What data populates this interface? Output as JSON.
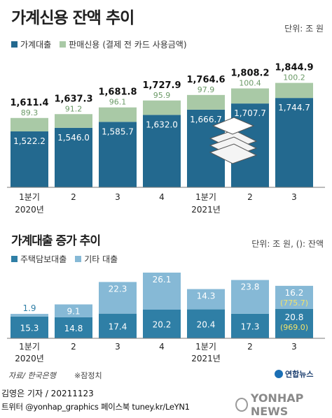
{
  "chart_data": [
    {
      "type": "bar",
      "stacked": true,
      "title": "가계신용 잔액 추이",
      "unit": "단위: 조 원",
      "categories": [
        [
          "1분기",
          "2020년"
        ],
        [
          "2",
          ""
        ],
        [
          "3",
          ""
        ],
        [
          "4",
          ""
        ],
        [
          "1분기",
          "2021년"
        ],
        [
          "2",
          ""
        ],
        [
          "3",
          ""
        ]
      ],
      "series": [
        {
          "name": "가계대출",
          "color": "#23698f",
          "values": [
            1522.2,
            1546.0,
            1585.7,
            1632.0,
            1666.7,
            1707.7,
            1744.7
          ]
        },
        {
          "name": "판매신용",
          "color": "#a9c9a6",
          "values": [
            89.3,
            91.2,
            96.1,
            95.9,
            97.9,
            100.4,
            100.2
          ]
        }
      ],
      "series_legend_suffix": "(결제 전 카드 사용금액)",
      "value_labels": {
        "가계대출": [
          "1,522.2",
          "1,546.0",
          "1,585.7",
          "1,632.0",
          "1,666.7",
          "1,707.7",
          "1,744.7"
        ],
        "판매신용": [
          "89.3",
          "91.2",
          "96.1",
          "95.9",
          "97.9",
          "100.4",
          "100.2"
        ]
      },
      "totals": [
        1611.4,
        1637.3,
        1681.8,
        1727.9,
        1764.6,
        1808.2,
        1844.9
      ],
      "total_labels": [
        "1,611.4",
        "1,637.3",
        "1,681.8",
        "1,727.9",
        "1,764.6",
        "1,808.2",
        "1,844.9"
      ],
      "icon": "money-stack-icon"
    },
    {
      "type": "bar",
      "stacked": true,
      "title": "가계대출 증가 추이",
      "unit": "단위: 조 원, (): 잔액",
      "categories": [
        [
          "1분기",
          "2020년"
        ],
        [
          "2",
          ""
        ],
        [
          "3",
          ""
        ],
        [
          "4",
          ""
        ],
        [
          "1분기",
          "2021년"
        ],
        [
          "2",
          ""
        ],
        [
          "3",
          ""
        ]
      ],
      "series": [
        {
          "name": "주택담보대출",
          "color": "#2f7fa6",
          "values": [
            15.3,
            14.8,
            17.4,
            20.2,
            20.4,
            17.3,
            20.8
          ]
        },
        {
          "name": "기타 대출",
          "color": "#86b9d6",
          "values": [
            1.9,
            9.1,
            22.3,
            26.1,
            14.3,
            23.8,
            16.2
          ]
        }
      ],
      "value_labels": {
        "주택담보대출": [
          "15.3",
          "14.8",
          "17.4",
          "20.2",
          "20.4",
          "17.3",
          "20.8"
        ],
        "기타 대출": [
          "1.9",
          "9.1",
          "22.3",
          "26.1",
          "14.3",
          "23.8",
          "16.2"
        ]
      },
      "balance_labels": {
        "주택담보대출": [
          "",
          "",
          "",
          "",
          "",
          "",
          "(969.0)"
        ],
        "기타 대출": [
          "",
          "",
          "",
          "",
          "",
          "",
          "(775.7)"
        ]
      },
      "balance_color": "#f2e36b"
    }
  ],
  "footer": {
    "source": "자료/ 한국은행",
    "note": "※잠정치",
    "byline": "김영은 기자 / 20211123",
    "social": "트위터 @yonhap_graphics  페이스북 tuney.kr/LeYN1",
    "brand_small": "연합뉴스",
    "brand_big": "YONHAP NEWS"
  },
  "colors": {
    "background": "#ffffff",
    "total_label": "#111111",
    "sales_label": "#6b9a67",
    "axis_line": "#7a7a7a"
  }
}
